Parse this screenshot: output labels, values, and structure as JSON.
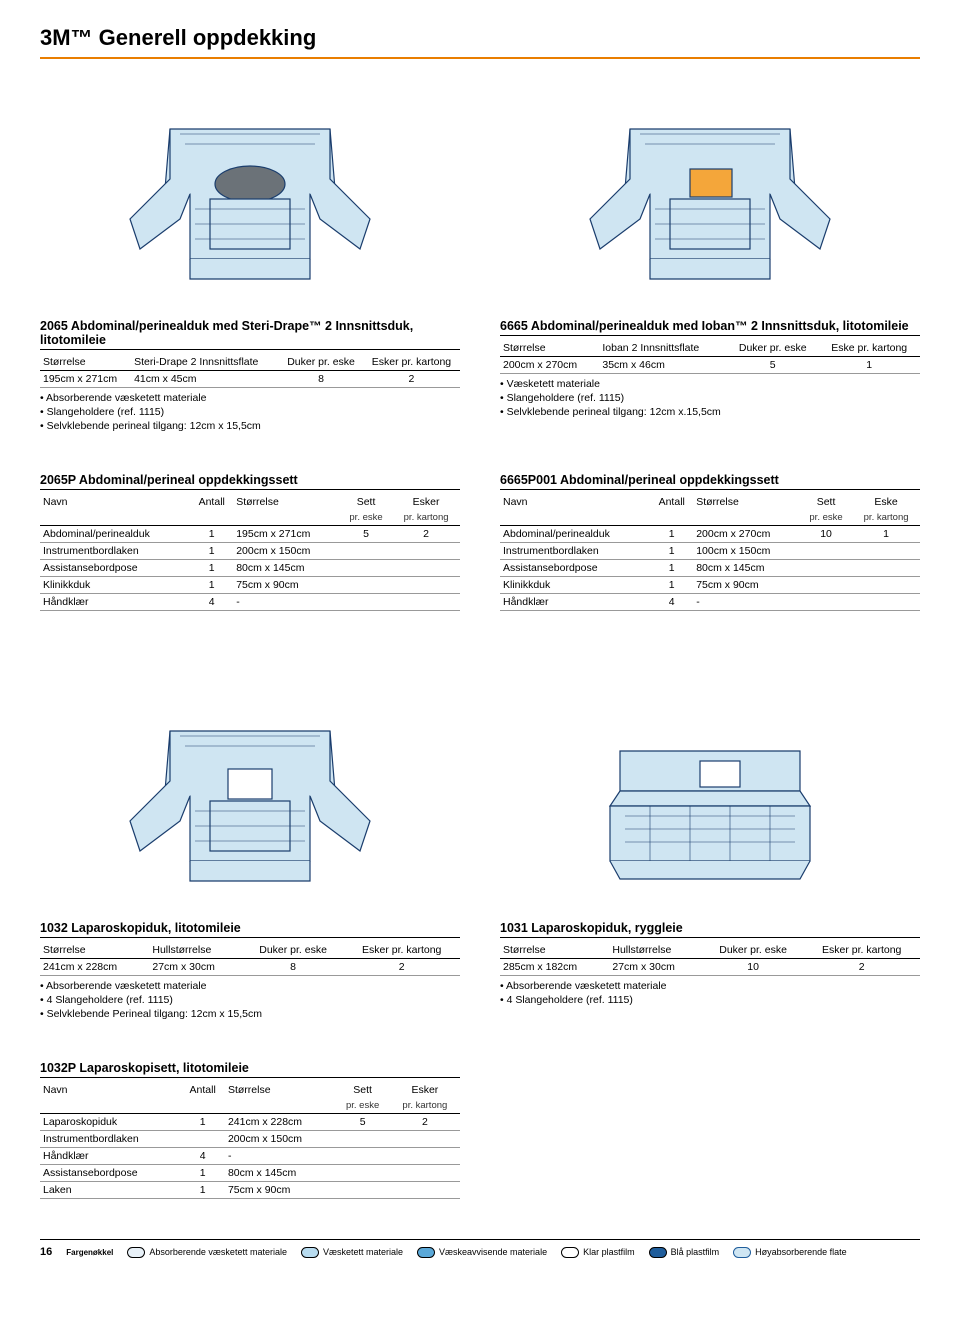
{
  "header": {
    "title": "3M™ Generell oppdekking"
  },
  "sec2065": {
    "title": "2065 Abdominal/perinealduk med Steri-Drape™ 2 Innsnittsduk, litotomileie",
    "cols": [
      "Størrelse",
      "Steri-Drape 2 Innsnittsflate",
      "Duker pr. eske",
      "Esker pr. kartong"
    ],
    "row": [
      "195cm x 271cm",
      "41cm x 45cm",
      "8",
      "2"
    ],
    "bullets": [
      "• Absorberende væsketett materiale",
      "• Slangeholdere (ref. 1115)",
      "• Selvklebende perineal tilgang: 12cm x 15,5cm"
    ]
  },
  "sec6665": {
    "title": "6665 Abdominal/perinealduk med Ioban™ 2 Innsnittsduk, litotomileie",
    "cols": [
      "Størrelse",
      "Ioban 2 Innsnittsflate",
      "Duker pr. eske",
      "Eske pr. kartong"
    ],
    "row": [
      "200cm x 270cm",
      "35cm x 46cm",
      "5",
      "1"
    ],
    "bullets": [
      "• Væsketett materiale",
      "• Slangeholdere (ref. 1115)",
      "• Selvklebende perineal tilgang: 12cm x.15,5cm"
    ]
  },
  "sec2065P": {
    "title": "2065P Abdominal/perineal oppdekkingssett",
    "cols": [
      "Navn",
      "Antall",
      "Størrelse",
      "Sett",
      "Esker"
    ],
    "sub": [
      "",
      "",
      "",
      "pr. eske",
      "pr. kartong"
    ],
    "rows": [
      [
        "Abdominal/perinealduk",
        "1",
        "195cm x 271cm",
        "5",
        "2"
      ],
      [
        "Instrumentbordlaken",
        "1",
        "200cm x 150cm",
        "",
        ""
      ],
      [
        "Assistansebordpose",
        "1",
        "80cm x 145cm",
        "",
        ""
      ],
      [
        "Klinikkduk",
        "1",
        "75cm x 90cm",
        "",
        ""
      ],
      [
        "Håndklær",
        "4",
        "-",
        "",
        ""
      ]
    ]
  },
  "sec6665P001": {
    "title": "6665P001 Abdominal/perineal oppdekkingssett",
    "cols": [
      "Navn",
      "Antall",
      "Størrelse",
      "Sett",
      "Eske"
    ],
    "sub": [
      "",
      "",
      "",
      "pr. eske",
      "pr. kartong"
    ],
    "rows": [
      [
        "Abdominal/perinealduk",
        "1",
        "200cm x 270cm",
        "10",
        "1"
      ],
      [
        "Instrumentbordlaken",
        "1",
        "100cm x 150cm",
        "",
        ""
      ],
      [
        "Assistansebordpose",
        "1",
        "80cm x 145cm",
        "",
        ""
      ],
      [
        "Klinikkduk",
        "1",
        "75cm x 90cm",
        "",
        ""
      ],
      [
        "Håndklær",
        "4",
        "-",
        "",
        ""
      ]
    ]
  },
  "sec1032": {
    "title": "1032 Laparoskopiduk, litotomileie",
    "cols": [
      "Størrelse",
      "Hullstørrelse",
      "Duker pr. eske",
      "Esker pr. kartong"
    ],
    "row": [
      "241cm x 228cm",
      "27cm x 30cm",
      "8",
      "2"
    ],
    "bullets": [
      "• Absorberende væsketett materiale",
      "• 4 Slangeholdere (ref. 1115)",
      "• Selvklebende Perineal tilgang: 12cm x 15,5cm"
    ]
  },
  "sec1031": {
    "title": "1031 Laparoskopiduk, ryggleie",
    "cols": [
      "Størrelse",
      "Hullstørrelse",
      "Duker pr. eske",
      "Esker pr. kartong"
    ],
    "row": [
      "285cm x 182cm",
      "27cm x 30cm",
      "10",
      "2"
    ],
    "bullets": [
      "• Absorberende væsketett materiale",
      "• 4 Slangeholdere (ref. 1115)"
    ]
  },
  "sec1032P": {
    "title": "1032P Laparoskopisett, litotomileie",
    "cols": [
      "Navn",
      "Antall",
      "Størrelse",
      "Sett",
      "Esker"
    ],
    "sub": [
      "",
      "",
      "",
      "pr. eske",
      "pr. kartong"
    ],
    "rows": [
      [
        "Laparoskopiduk",
        "1",
        "241cm x 228cm",
        "5",
        "2"
      ],
      [
        "Instrumentbordlaken",
        "",
        "200cm x 150cm",
        "",
        ""
      ],
      [
        "Håndklær",
        "4",
        "-",
        "",
        ""
      ],
      [
        "Assistansebordpose",
        "1",
        "80cm x 145cm",
        "",
        ""
      ],
      [
        "Laken",
        "1",
        "75cm x 90cm",
        "",
        ""
      ]
    ]
  },
  "footer": {
    "page": "16",
    "keyLabel": "Fargenøkkel",
    "legend": [
      {
        "label": "Absorberende væsketett materiale",
        "fill": "#e8f1f8",
        "stroke": "#000"
      },
      {
        "label": "Væsketett materiale",
        "fill": "#b8dcf0",
        "stroke": "#000"
      },
      {
        "label": "Væskeavvisende materiale",
        "fill": "#5aa8d8",
        "stroke": "#000"
      },
      {
        "label": "Klar plastfilm",
        "fill": "#ffffff",
        "stroke": "#000"
      },
      {
        "label": "Blå plastfilm",
        "fill": "#1f5d9b",
        "stroke": "#000"
      },
      {
        "label": "Høyabsorberende flate",
        "fill": "#cfe6f3",
        "stroke": "#1f5d9b"
      }
    ]
  },
  "colors": {
    "accent": "#e97e00",
    "drapeLight": "#cfe5f2",
    "drapeLine": "#1a3d6d",
    "ioban": "#f4a63a"
  }
}
